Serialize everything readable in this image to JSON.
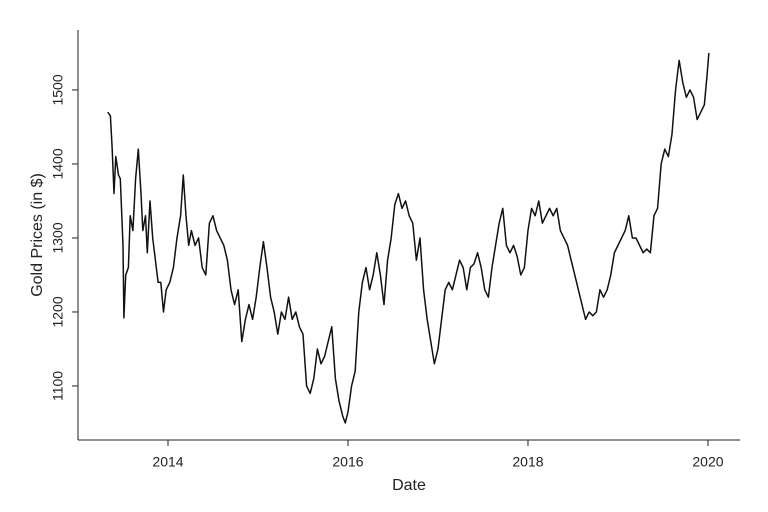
{
  "chart_data": {
    "type": "line",
    "x_label": "Date",
    "y_label": "Gold Prices (in $)",
    "xlim": [
      2013.0,
      2020.356
    ],
    "xticks": [
      2014,
      2016,
      2018,
      2020
    ],
    "ylim": [
      1027,
      1581
    ],
    "yticks": [
      1100,
      1200,
      1300,
      1400,
      1500
    ],
    "grid": false,
    "series": [
      {
        "name": "Gold price",
        "color": "#111111",
        "x": [
          2013.33,
          2013.36,
          2013.38,
          2013.4,
          2013.42,
          2013.45,
          2013.47,
          2013.5,
          2013.51,
          2013.53,
          2013.56,
          2013.58,
          2013.61,
          2013.64,
          2013.67,
          2013.7,
          2013.72,
          2013.75,
          2013.77,
          2013.8,
          2013.83,
          2013.86,
          2013.89,
          2013.92,
          2013.95,
          2013.98,
          2014.02,
          2014.06,
          2014.1,
          2014.14,
          2014.17,
          2014.2,
          2014.23,
          2014.26,
          2014.3,
          2014.34,
          2014.38,
          2014.42,
          2014.46,
          2014.5,
          2014.54,
          2014.58,
          2014.62,
          2014.66,
          2014.7,
          2014.74,
          2014.78,
          2014.82,
          2014.86,
          2014.9,
          2014.94,
          2014.98,
          2015.02,
          2015.06,
          2015.1,
          2015.14,
          2015.18,
          2015.22,
          2015.26,
          2015.3,
          2015.34,
          2015.38,
          2015.42,
          2015.46,
          2015.5,
          2015.54,
          2015.58,
          2015.62,
          2015.66,
          2015.7,
          2015.74,
          2015.78,
          2015.82,
          2015.86,
          2015.9,
          2015.94,
          2015.97,
          2016.0,
          2016.04,
          2016.08,
          2016.12,
          2016.16,
          2016.2,
          2016.24,
          2016.28,
          2016.32,
          2016.36,
          2016.4,
          2016.44,
          2016.48,
          2016.52,
          2016.56,
          2016.6,
          2016.64,
          2016.68,
          2016.72,
          2016.76,
          2016.8,
          2016.84,
          2016.88,
          2016.92,
          2016.96,
          2017.0,
          2017.04,
          2017.08,
          2017.12,
          2017.16,
          2017.2,
          2017.24,
          2017.28,
          2017.32,
          2017.36,
          2017.4,
          2017.44,
          2017.48,
          2017.52,
          2017.56,
          2017.6,
          2017.64,
          2017.68,
          2017.72,
          2017.76,
          2017.8,
          2017.84,
          2017.88,
          2017.92,
          2017.96,
          2018.0,
          2018.04,
          2018.08,
          2018.12,
          2018.16,
          2018.2,
          2018.24,
          2018.28,
          2018.32,
          2018.36,
          2018.4,
          2018.44,
          2018.48,
          2018.52,
          2018.56,
          2018.6,
          2018.64,
          2018.68,
          2018.72,
          2018.76,
          2018.8,
          2018.84,
          2018.88,
          2018.92,
          2018.96,
          2019.0,
          2019.04,
          2019.08,
          2019.12,
          2019.16,
          2019.2,
          2019.24,
          2019.28,
          2019.32,
          2019.36,
          2019.4,
          2019.44,
          2019.48,
          2019.52,
          2019.56,
          2019.6,
          2019.64,
          2019.68,
          2019.72,
          2019.76,
          2019.8,
          2019.84,
          2019.88,
          2019.92,
          2019.96,
          2019.99,
          2020.01
        ],
        "values": [
          1470,
          1465,
          1420,
          1360,
          1410,
          1385,
          1380,
          1290,
          1192,
          1250,
          1260,
          1330,
          1310,
          1380,
          1420,
          1360,
          1310,
          1330,
          1280,
          1350,
          1300,
          1270,
          1240,
          1240,
          1200,
          1230,
          1240,
          1260,
          1300,
          1330,
          1385,
          1330,
          1290,
          1310,
          1290,
          1300,
          1260,
          1250,
          1320,
          1330,
          1310,
          1300,
          1290,
          1270,
          1230,
          1210,
          1230,
          1160,
          1190,
          1210,
          1190,
          1220,
          1260,
          1295,
          1260,
          1220,
          1200,
          1170,
          1200,
          1190,
          1220,
          1190,
          1200,
          1180,
          1170,
          1100,
          1090,
          1110,
          1150,
          1130,
          1140,
          1160,
          1180,
          1110,
          1080,
          1060,
          1050,
          1065,
          1100,
          1120,
          1200,
          1240,
          1260,
          1230,
          1250,
          1280,
          1250,
          1210,
          1270,
          1300,
          1345,
          1360,
          1340,
          1350,
          1330,
          1320,
          1270,
          1300,
          1230,
          1190,
          1160,
          1130,
          1150,
          1190,
          1230,
          1240,
          1230,
          1250,
          1270,
          1260,
          1230,
          1260,
          1265,
          1280,
          1260,
          1230,
          1220,
          1260,
          1290,
          1320,
          1340,
          1290,
          1280,
          1290,
          1275,
          1250,
          1260,
          1310,
          1340,
          1330,
          1350,
          1320,
          1330,
          1340,
          1330,
          1340,
          1310,
          1300,
          1290,
          1270,
          1250,
          1230,
          1210,
          1190,
          1200,
          1195,
          1200,
          1230,
          1220,
          1230,
          1250,
          1280,
          1290,
          1300,
          1310,
          1330,
          1300,
          1300,
          1290,
          1280,
          1285,
          1280,
          1330,
          1340,
          1400,
          1420,
          1410,
          1440,
          1500,
          1540,
          1510,
          1490,
          1500,
          1490,
          1460,
          1470,
          1480,
          1520,
          1550
        ]
      }
    ]
  }
}
